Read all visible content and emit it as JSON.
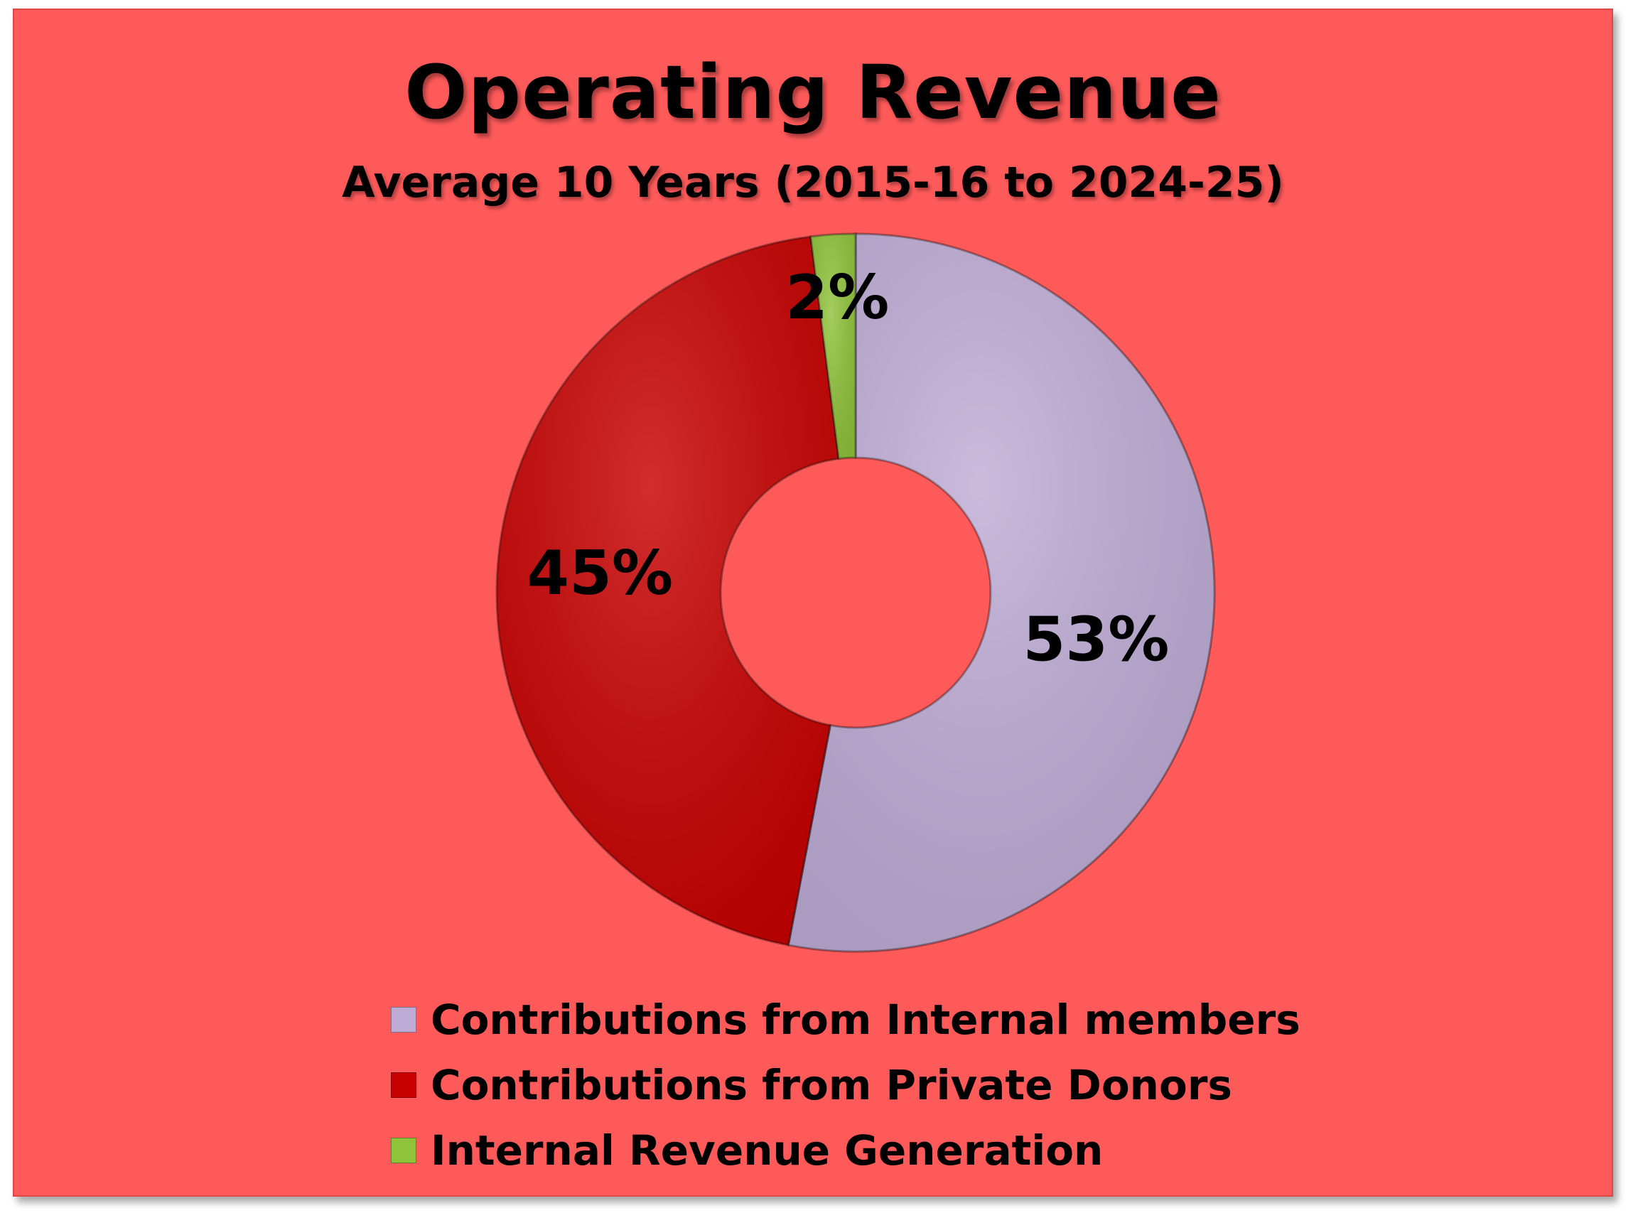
{
  "chart_data": {
    "type": "pie",
    "title": "Operating Revenue",
    "subtitle": "Average 10 Years (2015-16 to 2024-25)",
    "donut": true,
    "categories": [
      "Contributions from Internal members",
      "Contributions from Private Donors",
      "Internal Revenue Generation"
    ],
    "values": [
      53,
      45,
      2
    ],
    "data_labels": [
      "53%",
      "45%",
      "2%"
    ],
    "colors": [
      "#bfacd6",
      "#c80000",
      "#8fc33a"
    ],
    "legend_position": "bottom"
  },
  "background_color": "#fe5a5a"
}
